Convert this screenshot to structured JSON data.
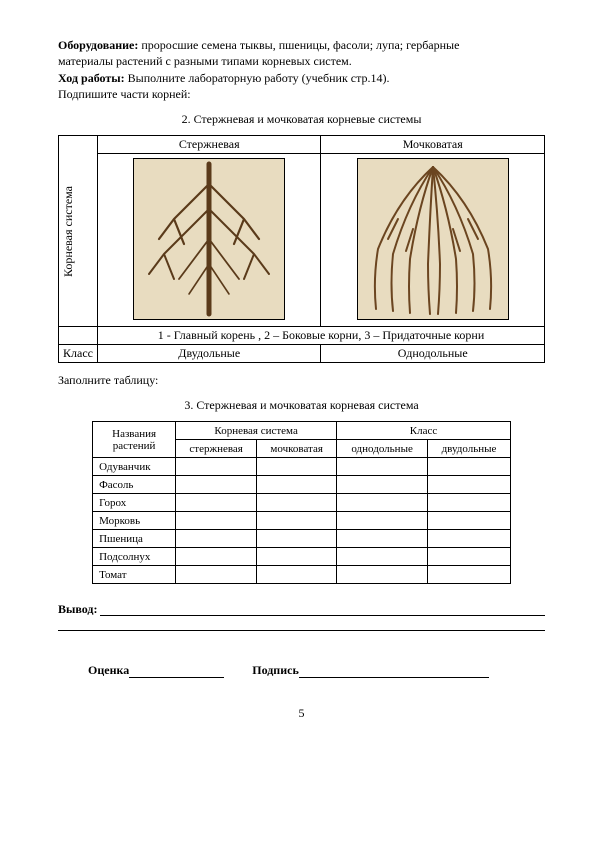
{
  "intro": {
    "equip_label": "Оборудование:",
    "equip_text1": " проросшие семена тыквы, пшеницы, фасоли; лупа; гербарные",
    "equip_text2": "материалы растений с разными типами корневых систем.",
    "proc_label": "Ход работы:",
    "proc_text": " Выполните лабораторную работу (учебник стр.14).",
    "sign_parts": "Подпишите части корней:"
  },
  "section2": {
    "title": "2. Стержневая и мочковатая корневые системы",
    "vlabel": "Корневая  система",
    "col1": "Стержневая",
    "col2": "Мочковатая",
    "legend": "1 - Главный корень ,  2 – Боковые корни, 3 – Придаточные корни",
    "class_label": "Класс",
    "class1": "Двудольные",
    "class2": "Однодольные",
    "tap_color": "#5a3a1a",
    "fib_color": "#6b4520",
    "bg_color": "#e8dcc0"
  },
  "fill_label": "Заполните таблицу:",
  "section3": {
    "title": "3. Стержневая и мочковатая корневая система",
    "h_names": "Названия растений",
    "h_system": "Корневая система",
    "h_class": "Класс",
    "sub_tap": "стержневая",
    "sub_fib": "мочковатая",
    "sub_mono": "однодольные",
    "sub_di": "двудольные",
    "rows": [
      "Одуванчик",
      "Фасоль",
      "Горох",
      "Морковь",
      "Пшеница",
      "Подсолнух",
      "Томат"
    ]
  },
  "conclusion_label": "Вывод:",
  "grade_label": "Оценка",
  "sign_label": "Подпись",
  "page_number": "5"
}
